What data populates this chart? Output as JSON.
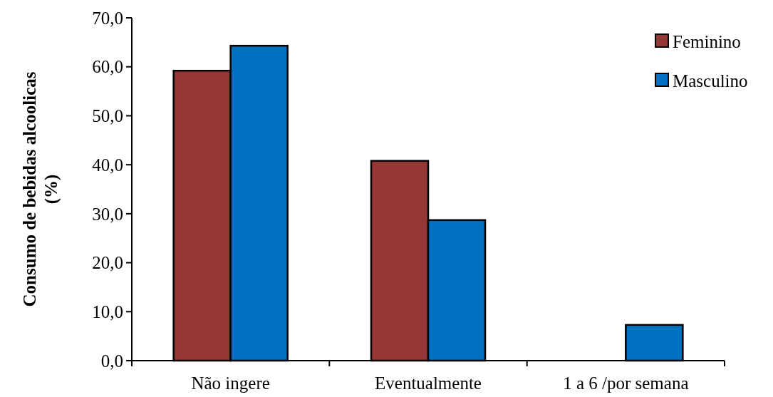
{
  "chart_data": {
    "type": "bar",
    "ylabel": "Consumo de bebidas alcoolicas (%)",
    "categories": [
      "Não ingere",
      "Eventualmente",
      "1 a 6 /por semana"
    ],
    "series": [
      {
        "name": "Feminino",
        "color": "#953735",
        "values": [
          59.2,
          40.8,
          0
        ]
      },
      {
        "name": "Masculino",
        "color": "#0070c0",
        "values": [
          64.3,
          28.7,
          7.3
        ]
      }
    ],
    "ylim": [
      0,
      70
    ],
    "yticks": [
      {
        "value": 0,
        "label": "0,0"
      },
      {
        "value": 10,
        "label": "10,0"
      },
      {
        "value": 20,
        "label": "20,0"
      },
      {
        "value": 30,
        "label": "30,0"
      },
      {
        "value": 40,
        "label": "40,0"
      },
      {
        "value": 50,
        "label": "50,0"
      },
      {
        "value": 60,
        "label": "60,0"
      },
      {
        "value": 70,
        "label": "70,0"
      }
    ],
    "grid": false,
    "legend": "top right"
  }
}
